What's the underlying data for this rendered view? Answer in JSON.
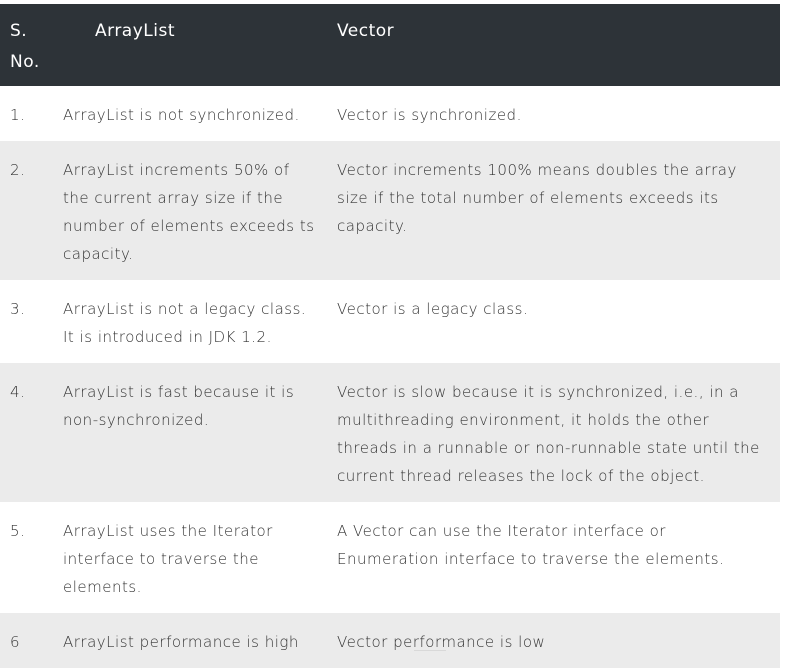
{
  "table": {
    "headers": {
      "sno": "S. No.",
      "arraylist": "ArrayList",
      "vector": "Vector"
    },
    "rows": [
      {
        "sno": "1.",
        "arraylist": "ArrayList is not synchronized.",
        "vector": "Vector is synchronized."
      },
      {
        "sno": "2.",
        "arraylist": "ArrayList increments 50% of the current array size if the number of elements exceeds ts capacity.",
        "vector": "Vector increments 100% means doubles the array size if the total number of elements exceeds its capacity."
      },
      {
        "sno": "3.",
        "arraylist": "ArrayList is not a legacy class. It is introduced in JDK 1.2.",
        "vector": "Vector is a legacy class."
      },
      {
        "sno": "4.",
        "arraylist": "ArrayList is fast because it is non-synchronized.",
        "vector": "Vector is slow because it is synchronized, i.e., in a multithreading environment, it holds the other threads in a runnable or non-runnable state until the current thread releases the lock of the object."
      },
      {
        "sno": "5.",
        "arraylist": "ArrayList uses the Iterator interface to traverse the elements.",
        "vector": "A Vector can use the Iterator interface or Enumeration interface to traverse the elements."
      },
      {
        "sno": "6",
        "arraylist": "ArrayList performance is high",
        "vector": "Vector performance is low"
      }
    ]
  }
}
